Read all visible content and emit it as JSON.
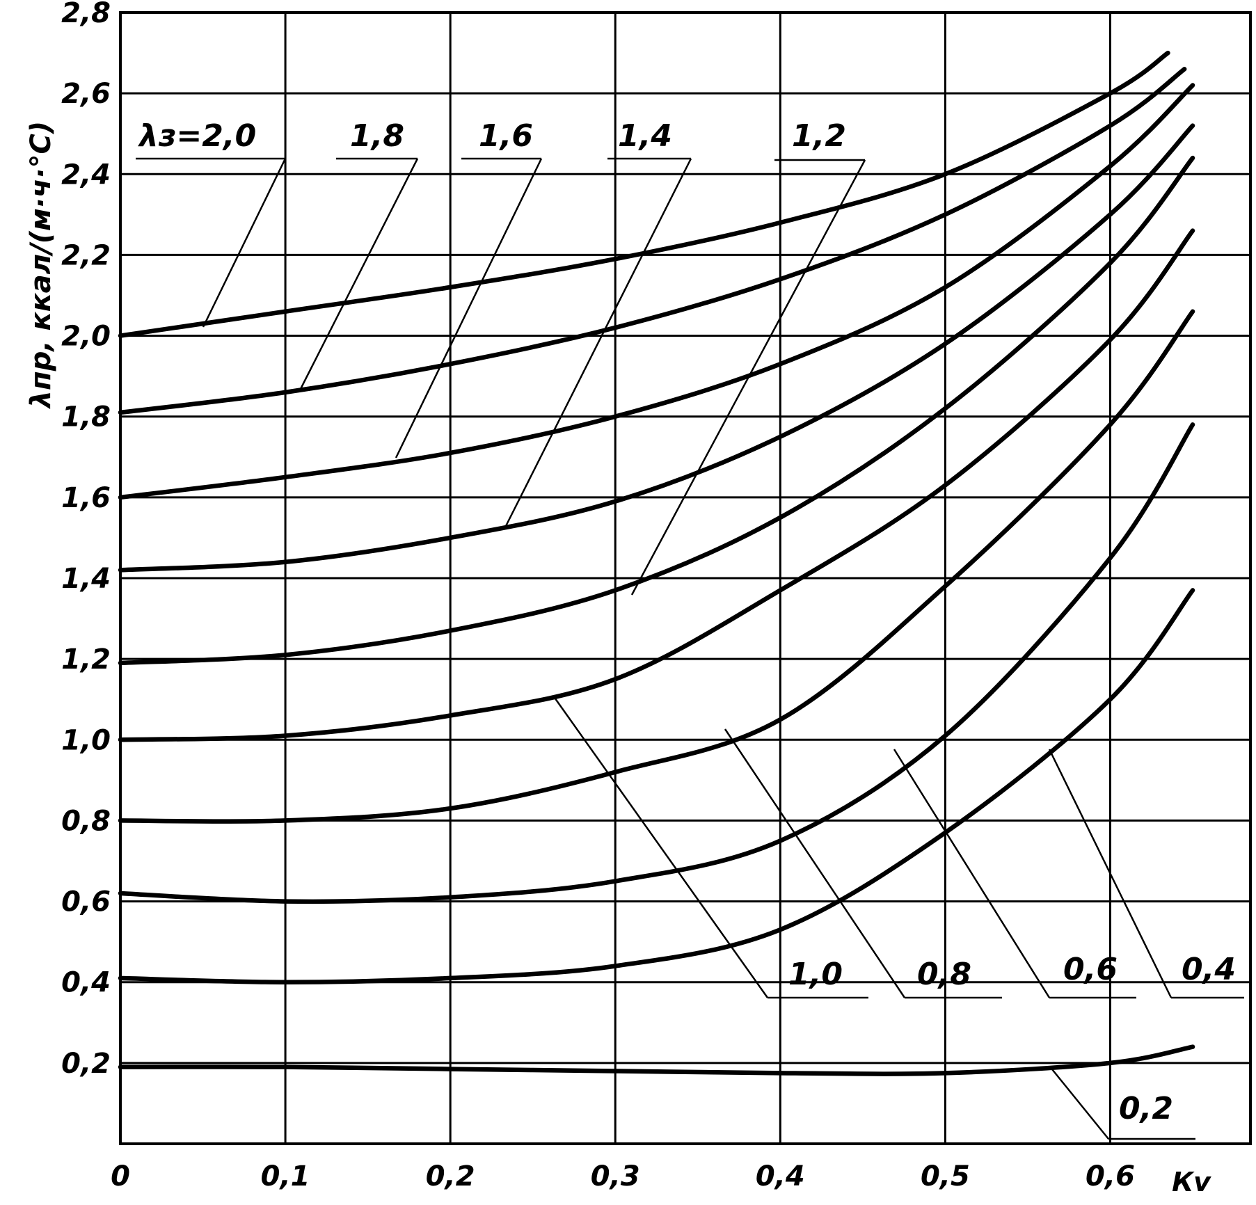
{
  "chart_data": {
    "type": "line",
    "ylabel": "λпр, ккал/(м·ч·°С)",
    "xlabel": "Кv",
    "xlim": [
      0,
      0.685
    ],
    "ylim": [
      0,
      2.8
    ],
    "grid": true,
    "x_ticks": [
      "0",
      "0,1",
      "0,2",
      "0,3",
      "0,4",
      "0,5",
      "0,6"
    ],
    "y_ticks": [
      "0,2",
      "0,4",
      "0,6",
      "0,8",
      "1,0",
      "1,2",
      "1,4",
      "1,6",
      "1,8",
      "2,0",
      "2,2",
      "2,4",
      "2,6",
      "2,8"
    ],
    "series": [
      {
        "name": "2,0",
        "x": [
          0,
          0.1,
          0.2,
          0.3,
          0.4,
          0.5,
          0.6,
          0.635
        ],
        "y": [
          2.0,
          2.06,
          2.12,
          2.19,
          2.28,
          2.4,
          2.6,
          2.7
        ]
      },
      {
        "name": "1,8",
        "x": [
          0,
          0.1,
          0.2,
          0.3,
          0.4,
          0.5,
          0.6,
          0.645
        ],
        "y": [
          1.81,
          1.86,
          1.93,
          2.02,
          2.14,
          2.3,
          2.52,
          2.66
        ]
      },
      {
        "name": "1,6",
        "x": [
          0,
          0.1,
          0.2,
          0.3,
          0.4,
          0.5,
          0.6,
          0.65
        ],
        "y": [
          1.6,
          1.65,
          1.71,
          1.8,
          1.93,
          2.12,
          2.42,
          2.62
        ]
      },
      {
        "name": "1,4",
        "x": [
          0,
          0.1,
          0.2,
          0.3,
          0.4,
          0.5,
          0.6,
          0.65
        ],
        "y": [
          1.42,
          1.44,
          1.5,
          1.59,
          1.75,
          1.98,
          2.3,
          2.52
        ]
      },
      {
        "name": "1,2",
        "x": [
          0,
          0.1,
          0.2,
          0.3,
          0.4,
          0.5,
          0.6,
          0.65
        ],
        "y": [
          1.19,
          1.21,
          1.27,
          1.37,
          1.55,
          1.82,
          2.18,
          2.44
        ]
      },
      {
        "name": "1,0",
        "x": [
          0,
          0.1,
          0.2,
          0.3,
          0.4,
          0.5,
          0.6,
          0.65
        ],
        "y": [
          1.0,
          1.01,
          1.06,
          1.15,
          1.37,
          1.63,
          1.99,
          2.26
        ]
      },
      {
        "name": "0,8",
        "x": [
          0,
          0.1,
          0.2,
          0.3,
          0.4,
          0.5,
          0.6,
          0.65
        ],
        "y": [
          0.8,
          0.8,
          0.83,
          0.92,
          1.05,
          1.38,
          1.78,
          2.06
        ]
      },
      {
        "name": "0,6",
        "x": [
          0,
          0.1,
          0.2,
          0.3,
          0.4,
          0.5,
          0.6,
          0.65
        ],
        "y": [
          0.62,
          0.6,
          0.61,
          0.65,
          0.75,
          1.01,
          1.45,
          1.78
        ]
      },
      {
        "name": "0,4",
        "x": [
          0,
          0.1,
          0.2,
          0.3,
          0.4,
          0.5,
          0.6,
          0.65
        ],
        "y": [
          0.41,
          0.4,
          0.41,
          0.44,
          0.53,
          0.77,
          1.1,
          1.37
        ]
      },
      {
        "name": "0,2",
        "x": [
          0,
          0.1,
          0.2,
          0.3,
          0.4,
          0.5,
          0.6,
          0.65
        ],
        "y": [
          0.19,
          0.19,
          0.185,
          0.18,
          0.175,
          0.175,
          0.2,
          0.24
        ]
      }
    ],
    "annotations": [
      {
        "text": "λз=2,0"
      },
      {
        "text": "1,8"
      },
      {
        "text": "1,6"
      },
      {
        "text": "1,4"
      },
      {
        "text": "1,2"
      },
      {
        "text": "1,0"
      },
      {
        "text": "0,8"
      },
      {
        "text": "0,6"
      },
      {
        "text": "0,4"
      },
      {
        "text": "0,2"
      }
    ]
  }
}
